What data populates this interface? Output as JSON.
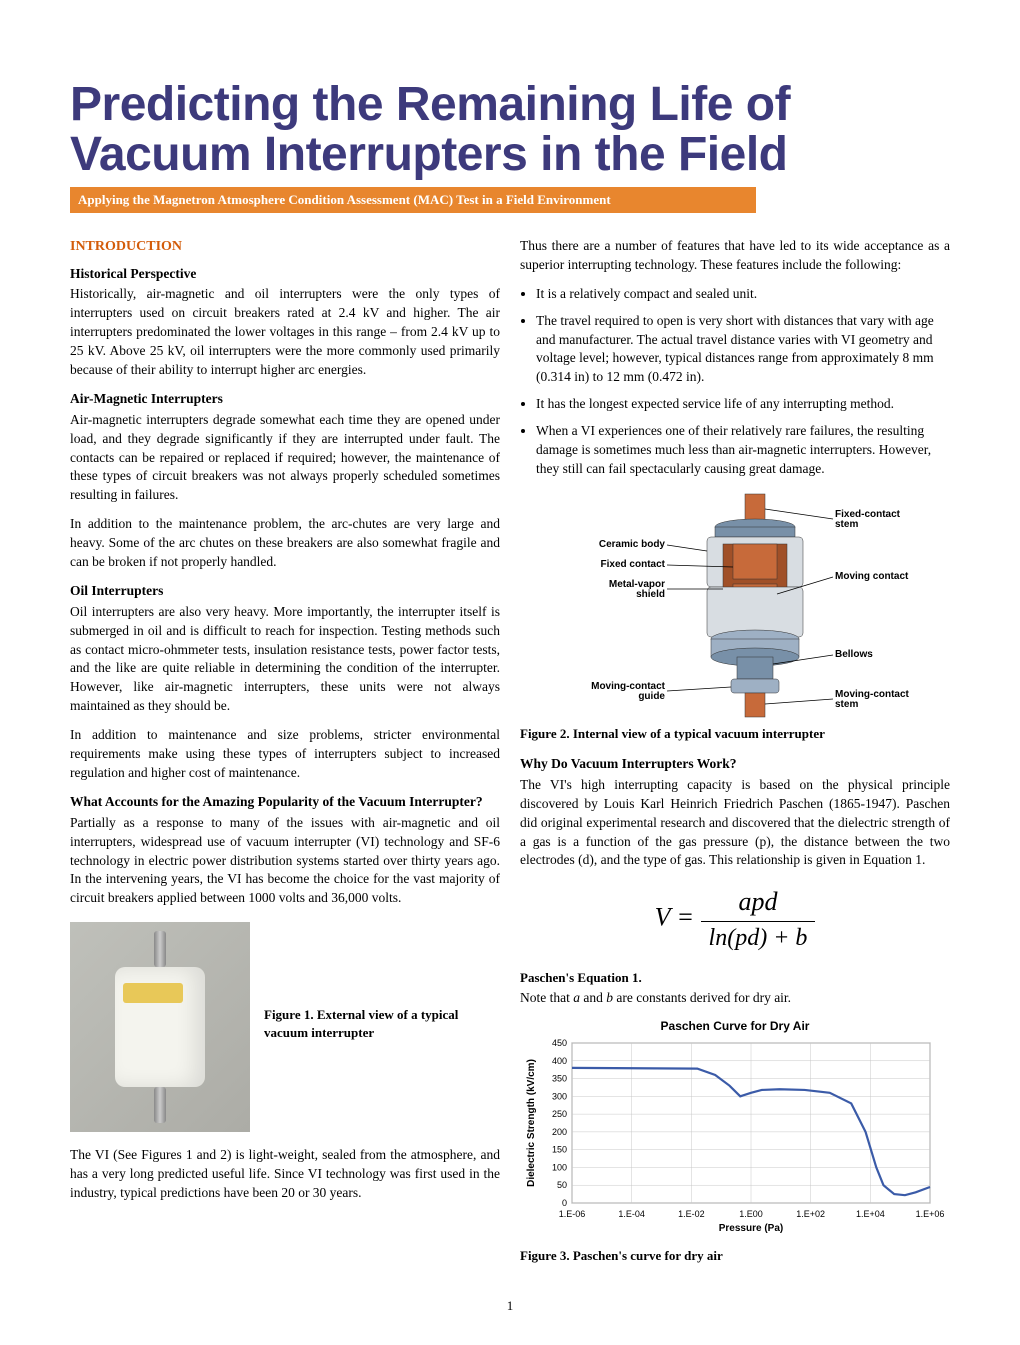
{
  "title": "Predicting the Remaining Life of Vacuum Interrupters in the Field",
  "subtitle": "Applying the Magnetron Atmosphere Condition Assessment (MAC) Test in a Field Environment",
  "intro_label": "INTRODUCTION",
  "col1": {
    "h_hist": "Historical Perspective",
    "p_hist": "Historically, air-magnetic and oil interrupters were the only types of interrupters used on circuit breakers rated at 2.4 kV and higher. The air interrupters predominated the lower voltages in this range – from 2.4 kV up to 25 kV. Above 25 kV, oil interrupters were the more commonly used primarily because of their ability to interrupt higher arc energies.",
    "h_air": "Air-Magnetic Interrupters",
    "p_air1": "Air-magnetic interrupters degrade somewhat each time they are opened under load, and they degrade significantly if they are interrupted under fault. The contacts can be repaired or replaced if required; however, the maintenance of these types of circuit breakers was not always properly scheduled sometimes resulting in failures.",
    "p_air2": "In addition to the maintenance problem, the arc-chutes are very large and heavy. Some of the arc chutes on these breakers are also somewhat fragile and can be broken if not properly handled.",
    "h_oil": "Oil Interrupters",
    "p_oil1": "Oil interrupters are also very heavy. More importantly, the interrupter itself is submerged in oil and is difficult to reach for inspection. Testing methods such as contact micro-ohmmeter tests, insulation resistance tests, power factor tests, and the like are quite reliable in determining the condition of the interrupter. However, like air-magnetic interrupters, these units were not always maintained as they should be.",
    "p_oil2": "In addition to maintenance and size problems, stricter environmental requirements make using these types of interrupters subject to increased regulation and higher cost of maintenance.",
    "h_pop": "What Accounts for the Amazing Popularity of the Vacuum Interrupter?",
    "p_pop": "Partially as a response to many of the issues with air-magnetic and oil interrupters, widespread use of vacuum interrupter (VI) technology and SF-6 technology in electric power distribution systems started over thirty years ago. In the intervening years, the VI has become the choice for the vast majority of circuit breakers applied between 1000 volts and 36,000 volts.",
    "fig1_cap": "Figure 1. External view of a typical vacuum interrupter",
    "p_vi": "The VI (See Figures 1 and 2) is light-weight, sealed from the atmosphere, and has a very long predicted useful life. Since VI technology was first used in the industry, typical predictions have been 20 or 30 years."
  },
  "col2": {
    "p_thus": "Thus there are a number of features that have led to its wide acceptance as a superior interrupting technology. These features include the following:",
    "bullets": [
      "It is a relatively compact and sealed unit.",
      "The travel required to open is very short with distances that vary with age and manufacturer. The actual travel distance varies with VI geometry and voltage level; however, typical distances range from approximately 8 mm (0.314 in) to 12 mm (0.472 in).",
      "It has the longest expected service life of any interrupting method.",
      "When a VI experiences one of their relatively rare failures, the resulting damage is sometimes much less than air-magnetic interrupters. However, they still can fail spectacularly causing great damage."
    ],
    "fig2": {
      "labels": {
        "ceramic": "Ceramic body",
        "fixed_contact": "Fixed contact",
        "metal_vapor": "Metal-vapor shield",
        "moving_guide": "Moving-contact guide",
        "fixed_stem": "Fixed-contact stem",
        "moving_contact": "Moving contact",
        "bellows": "Bellows",
        "moving_stem": "Moving-contact stem"
      },
      "colors": {
        "copper": "#c76a3a",
        "copper_dark": "#a05028",
        "steel": "#7890a8",
        "steel_light": "#9eb0c4",
        "ceramic": "#d8dde2"
      }
    },
    "fig2_cap": "Figure 2. Internal view of a typical vacuum interrupter",
    "h_why": "Why Do Vacuum Interrupters Work?",
    "p_why": "The VI's high interrupting capacity is based on the physical principle discovered by Louis Karl Heinrich Friedrich Paschen (1865-1947). Paschen did original experimental research and discovered that the dielectric strength of a gas is a function of the gas pressure (p), the distance between the two electrodes (d), and the type of gas. This relationship is given in Equation 1.",
    "eq_label": "Paschen's Equation 1.",
    "eq_note": "Note that a and b are constants derived for dry air.",
    "chart": {
      "title": "Paschen Curve for Dry Air",
      "ylabel": "Dielectric Strength (kV/cm)",
      "xlabel": "Pressure (Pa)",
      "ylim": [
        0,
        450
      ],
      "ytick_step": 50,
      "xticks": [
        "1.E-06",
        "1.E-04",
        "1.E-02",
        "1.E00",
        "1.E+02",
        "1.E+04",
        "1.E+06"
      ],
      "line_color": "#3b5ba8",
      "grid_color": "#c8c8c8",
      "border_color": "#888",
      "data": [
        [
          0,
          380
        ],
        [
          0.35,
          378
        ],
        [
          0.4,
          360
        ],
        [
          0.44,
          330
        ],
        [
          0.47,
          300
        ],
        [
          0.5,
          310
        ],
        [
          0.53,
          318
        ],
        [
          0.58,
          320
        ],
        [
          0.65,
          318
        ],
        [
          0.72,
          310
        ],
        [
          0.78,
          280
        ],
        [
          0.82,
          200
        ],
        [
          0.85,
          100
        ],
        [
          0.87,
          50
        ],
        [
          0.9,
          25
        ],
        [
          0.93,
          22
        ],
        [
          0.96,
          30
        ],
        [
          1.0,
          45
        ]
      ]
    },
    "fig3_cap": "Figure 3. Paschen's curve for dry air"
  },
  "page_num": "1"
}
